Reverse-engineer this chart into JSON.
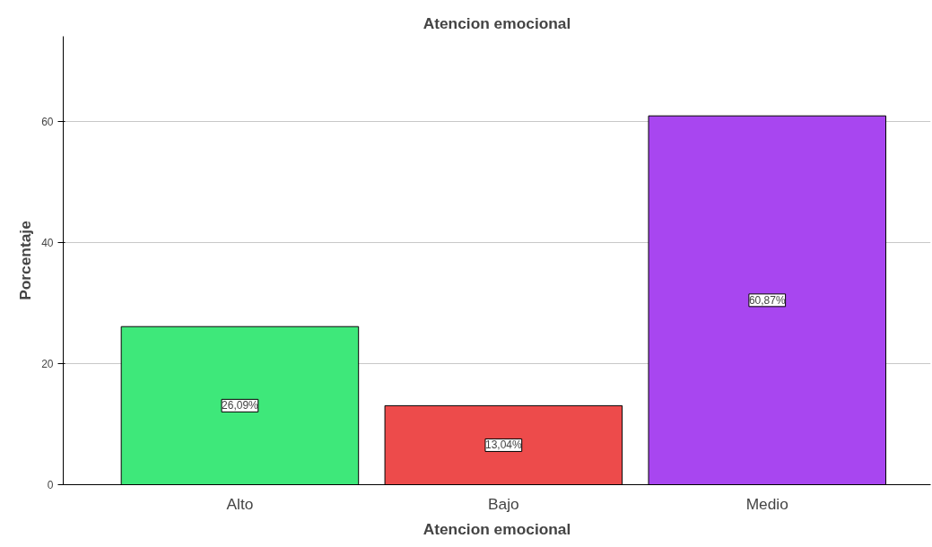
{
  "chart_data": {
    "type": "bar",
    "title": "Atencion emocional",
    "xlabel": "Atencion emocional",
    "ylabel": "Porcentaje",
    "categories": [
      "Alto",
      "Bajo",
      "Medio"
    ],
    "values": [
      26.09,
      13.04,
      60.87
    ],
    "colors": [
      "#3ee87a",
      "#ed4b4b",
      "#a846f0"
    ],
    "value_labels": [
      "26,09%",
      "13,04%",
      "60,87%"
    ],
    "ylim": [
      0,
      74
    ],
    "yticks": [
      0,
      20,
      40,
      60
    ],
    "grid": "y"
  }
}
